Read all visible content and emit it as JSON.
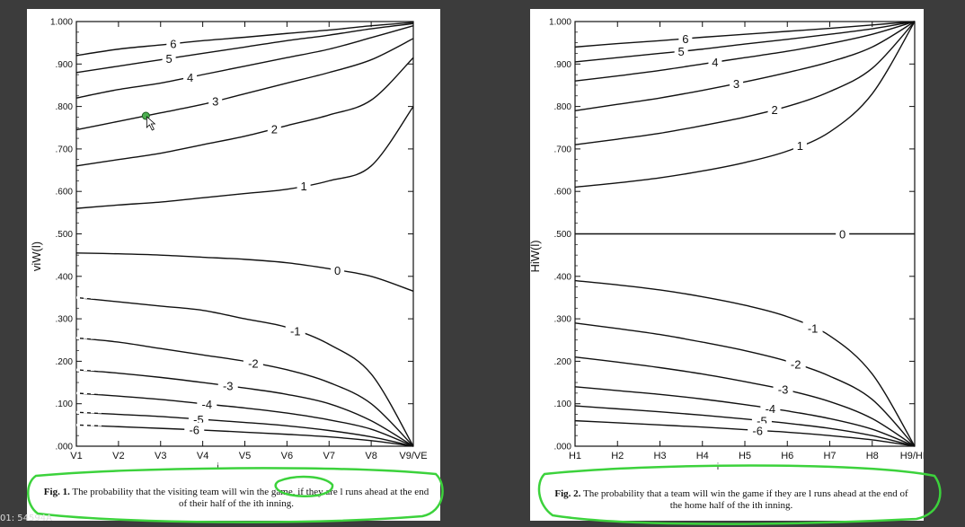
{
  "chart_data": [
    {
      "type": "line",
      "ylabel": "viW(l)",
      "xlabel": "i",
      "ylim": [
        0,
        1
      ],
      "yticks": [
        ".000",
        ".100",
        ".200",
        ".300",
        ".400",
        ".500",
        ".600",
        ".700",
        ".800",
        ".900",
        "1.000"
      ],
      "categories": [
        "V1",
        "V2",
        "V3",
        "V4",
        "V5",
        "V6",
        "V7",
        "V8",
        "V9/VE"
      ],
      "caption_fig": "Fig. 1.",
      "caption_text": "The probability that the visiting team will win the game, if they are l runs ahead at the end of their half of the ith inning.",
      "series": [
        {
          "name": "6",
          "values": [
            0.92,
            0.935,
            0.945,
            0.955,
            0.963,
            0.972,
            0.98,
            0.99,
            0.998
          ]
        },
        {
          "name": "5",
          "values": [
            0.88,
            0.895,
            0.91,
            0.925,
            0.94,
            0.955,
            0.968,
            0.983,
            0.995
          ]
        },
        {
          "name": "4",
          "values": [
            0.82,
            0.84,
            0.855,
            0.875,
            0.895,
            0.915,
            0.935,
            0.962,
            0.99
          ]
        },
        {
          "name": "3",
          "values": [
            0.745,
            0.765,
            0.785,
            0.805,
            0.83,
            0.855,
            0.88,
            0.91,
            0.96
          ]
        },
        {
          "name": "2",
          "values": [
            0.66,
            0.675,
            0.69,
            0.71,
            0.73,
            0.755,
            0.78,
            0.815,
            0.915
          ]
        },
        {
          "name": "1",
          "values": [
            0.56,
            0.568,
            0.575,
            0.585,
            0.595,
            0.605,
            0.625,
            0.66,
            0.8
          ]
        },
        {
          "name": "0",
          "values": [
            0.455,
            0.453,
            0.45,
            0.445,
            0.44,
            0.432,
            0.418,
            0.4,
            0.365
          ]
        },
        {
          "name": "-1",
          "values": [
            0.35,
            0.34,
            0.33,
            0.32,
            0.3,
            0.28,
            0.24,
            0.17,
            0.0
          ]
        },
        {
          "name": "-2",
          "values": [
            0.255,
            0.245,
            0.23,
            0.215,
            0.2,
            0.18,
            0.15,
            0.1,
            0.0
          ]
        },
        {
          "name": "-3",
          "values": [
            0.18,
            0.172,
            0.162,
            0.15,
            0.137,
            0.122,
            0.1,
            0.06,
            0.0
          ]
        },
        {
          "name": "-4",
          "values": [
            0.125,
            0.118,
            0.11,
            0.1,
            0.09,
            0.078,
            0.062,
            0.04,
            0.0
          ]
        },
        {
          "name": "-5",
          "values": [
            0.08,
            0.075,
            0.07,
            0.063,
            0.056,
            0.048,
            0.037,
            0.022,
            0.0
          ]
        },
        {
          "name": "-6",
          "values": [
            0.05,
            0.046,
            0.042,
            0.038,
            0.033,
            0.028,
            0.022,
            0.013,
            0.0
          ]
        }
      ]
    },
    {
      "type": "line",
      "ylabel": "HiW(l)",
      "xlabel": "i",
      "ylim": [
        0,
        1
      ],
      "yticks": [
        ".000",
        ".100",
        ".200",
        ".300",
        ".400",
        ".500",
        ".600",
        ".700",
        ".800",
        ".900",
        "1.000"
      ],
      "categories": [
        "H1",
        "H2",
        "H3",
        "H4",
        "H5",
        "H6",
        "H7",
        "H8",
        "H9/HE"
      ],
      "caption_fig": "Fig. 2.",
      "caption_text": "The probability that a team will win the game if they are l runs ahead at the end of the home half of the ith inning.",
      "series": [
        {
          "name": "6",
          "values": [
            0.94,
            0.948,
            0.955,
            0.963,
            0.97,
            0.977,
            0.984,
            0.992,
            1.0
          ]
        },
        {
          "name": "5",
          "values": [
            0.905,
            0.915,
            0.925,
            0.935,
            0.947,
            0.958,
            0.97,
            0.983,
            1.0
          ]
        },
        {
          "name": "4",
          "values": [
            0.86,
            0.872,
            0.885,
            0.9,
            0.915,
            0.93,
            0.948,
            0.97,
            1.0
          ]
        },
        {
          "name": "3",
          "values": [
            0.79,
            0.805,
            0.82,
            0.838,
            0.858,
            0.88,
            0.905,
            0.94,
            1.0
          ]
        },
        {
          "name": "2",
          "values": [
            0.71,
            0.723,
            0.737,
            0.755,
            0.775,
            0.8,
            0.835,
            0.89,
            1.0
          ]
        },
        {
          "name": "1",
          "values": [
            0.61,
            0.62,
            0.632,
            0.648,
            0.668,
            0.695,
            0.74,
            0.83,
            1.0
          ]
        },
        {
          "name": "0",
          "values": [
            0.5,
            0.5,
            0.5,
            0.5,
            0.5,
            0.5,
            0.5,
            0.5,
            0.5
          ]
        },
        {
          "name": "-1",
          "values": [
            0.39,
            0.38,
            0.368,
            0.352,
            0.332,
            0.305,
            0.26,
            0.17,
            0.0
          ]
        },
        {
          "name": "-2",
          "values": [
            0.29,
            0.277,
            0.263,
            0.245,
            0.225,
            0.2,
            0.165,
            0.11,
            0.0
          ]
        },
        {
          "name": "-3",
          "values": [
            0.21,
            0.198,
            0.185,
            0.17,
            0.152,
            0.132,
            0.105,
            0.065,
            0.0
          ]
        },
        {
          "name": "-4",
          "values": [
            0.14,
            0.131,
            0.122,
            0.111,
            0.098,
            0.083,
            0.065,
            0.04,
            0.0
          ]
        },
        {
          "name": "-5",
          "values": [
            0.095,
            0.088,
            0.081,
            0.073,
            0.064,
            0.054,
            0.042,
            0.025,
            0.0
          ]
        },
        {
          "name": "-6",
          "values": [
            0.06,
            0.055,
            0.05,
            0.045,
            0.039,
            0.033,
            0.025,
            0.015,
            0.0
          ]
        }
      ]
    }
  ],
  "label_positions": {
    "chart1": [
      2.3,
      2.2,
      2.7,
      3.3,
      4.7,
      5.4,
      6.2,
      5.2,
      4.2,
      3.6,
      3.1,
      2.9,
      2.8
    ],
    "chart2": [
      2.6,
      2.5,
      3.3,
      3.8,
      4.7,
      5.3,
      6.3,
      5.6,
      5.2,
      4.9,
      4.6,
      4.4,
      4.3
    ]
  },
  "annotation_color": "#3cd23c",
  "cursor_dot_color": "#4caf50",
  "corner_text": "01: 54594A"
}
